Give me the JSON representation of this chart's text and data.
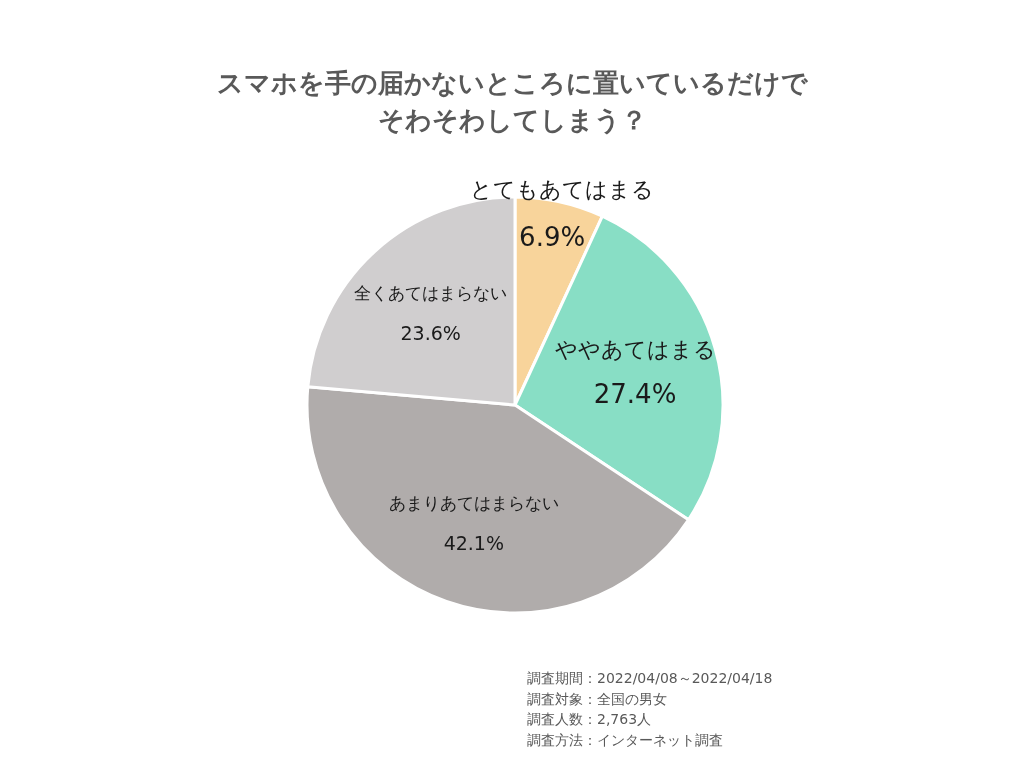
{
  "chart_data": {
    "type": "pie",
    "title": "スマホを手の届かないところに置いているだけでそわそわしてしまう？",
    "categories": [
      "とてもあてはまる",
      "ややあてはまる",
      "あまりあてはまらない",
      "全くあてはまらない"
    ],
    "values": [
      6.9,
      27.4,
      42.1,
      23.6
    ],
    "value_labels": [
      "6.9%",
      "27.4%",
      "42.1%",
      "23.6%"
    ],
    "colors": [
      "#f8d49b",
      "#88dec5",
      "#b0acab",
      "#d0cecf"
    ],
    "annotations": [
      "調査期間：2022/04/08～2022/04/18",
      "調査対象：全国の男女",
      "調査人数：2,763人",
      "調査方法：インターネット調査"
    ]
  }
}
